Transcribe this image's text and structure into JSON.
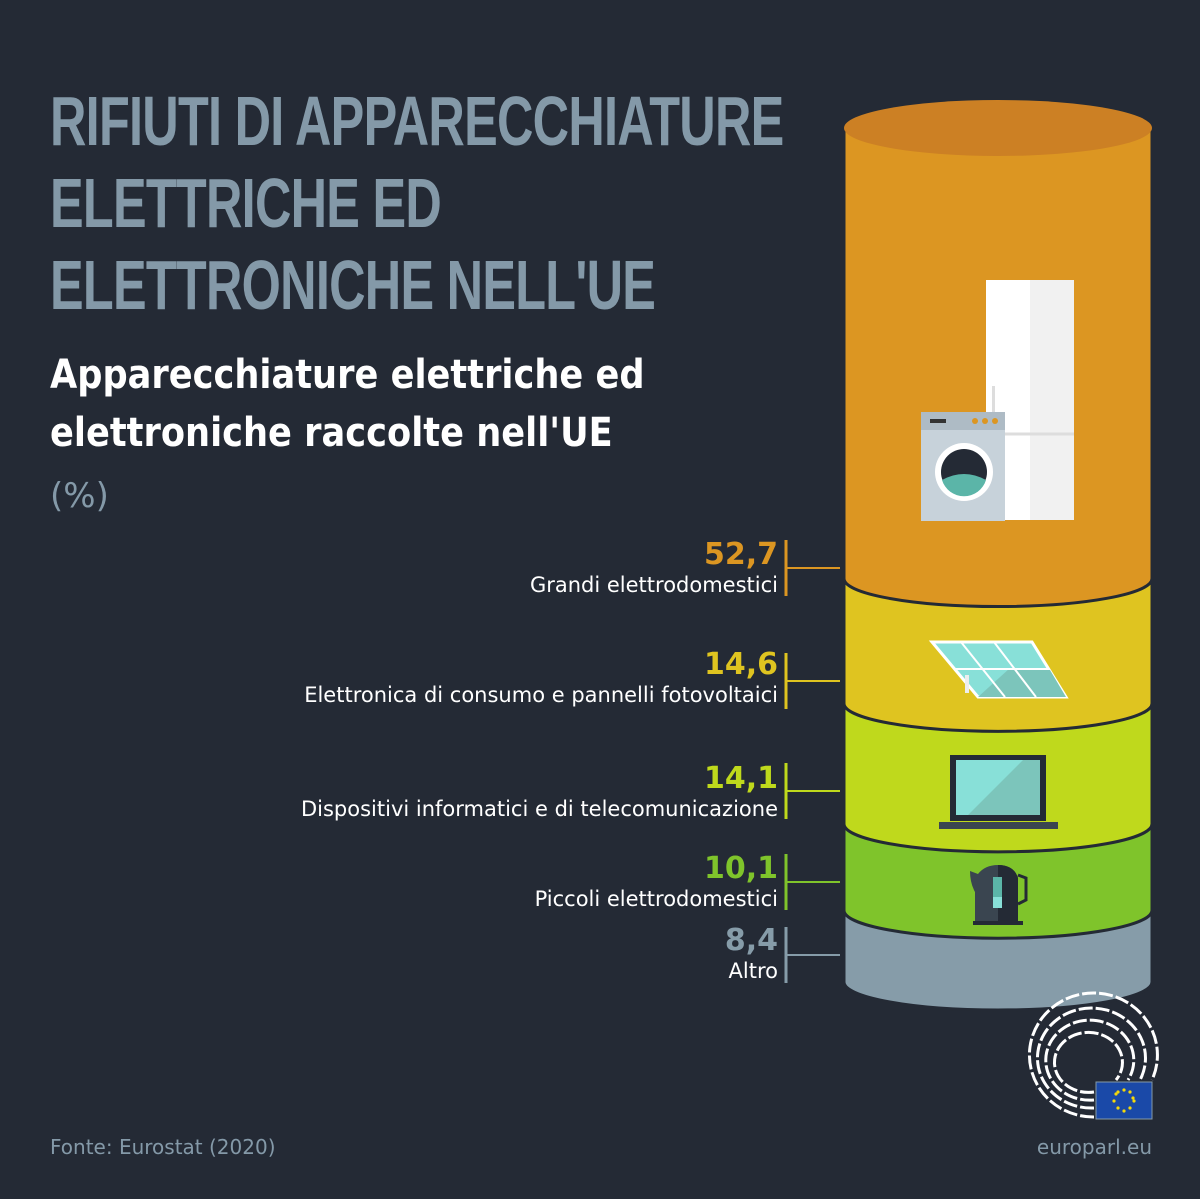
{
  "title": [
    "RIFIUTI DI APPARECCHIATURE",
    "ELETTRICHE ED",
    "ELETTRONICHE NELL'UE"
  ],
  "source": "Fonte: Eurostat (2020)",
  "site": "europarl.eu",
  "chart_data": {
    "type": "stacked-cylinder",
    "title": "Apparecchiature elettriche ed elettroniche raccolte nell'UE",
    "unit": "(%)",
    "categories": [
      "Grandi elettrodomestici",
      "Elettronica di consumo e pannelli fotovoltaici",
      "Dispositivi informatici e di telecomunicazione",
      "Piccoli elettrodomestici",
      "Altro"
    ],
    "values": [
      52.7,
      14.6,
      14.1,
      10.1,
      8.4
    ],
    "value_labels": [
      "52,7",
      "14,6",
      "14,1",
      "10,1",
      "8,4"
    ],
    "colors": [
      "#dc9622",
      "#dfc420",
      "#bfd91c",
      "#7fc42b",
      "#869ca9"
    ],
    "icons": [
      "fridge-washing-machine-icon",
      "solar-panel-icon",
      "laptop-icon",
      "kettle-icon",
      ""
    ]
  }
}
